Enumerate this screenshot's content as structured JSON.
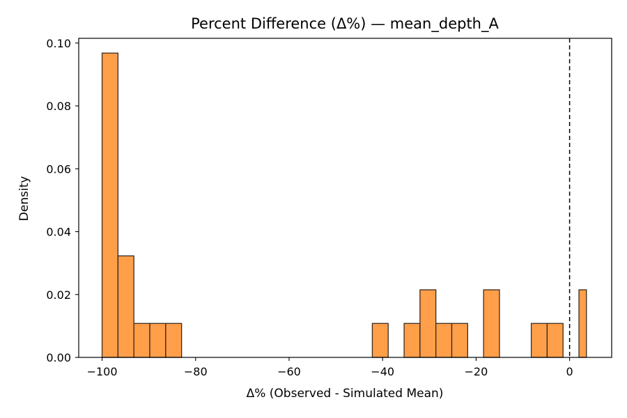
{
  "chart_data": {
    "type": "bar",
    "title": "Percent Difference (Δ%) — mean_depth_A",
    "xlabel": "Δ% (Observed - Simulated Mean)",
    "ylabel": "Density",
    "xlim": [
      -105,
      9
    ],
    "ylim": [
      0,
      0.1015
    ],
    "xticks": [
      -100,
      -80,
      -60,
      -40,
      -20,
      0
    ],
    "xtick_labels": [
      "−100",
      "−80",
      "−60",
      "−40",
      "−20",
      "0"
    ],
    "yticks": [
      0,
      0.02,
      0.04,
      0.06,
      0.08,
      0.1
    ],
    "ytick_labels": [
      "0.00",
      "0.02",
      "0.04",
      "0.06",
      "0.08",
      "0.10"
    ],
    "grid": false,
    "bin_edges": [
      -100,
      -96.6,
      -93.2,
      -89.8,
      -86.4,
      -83.0,
      -79.6,
      -76.2,
      -72.8,
      -69.4,
      -66.0,
      -62.6,
      -59.2,
      -55.8,
      -52.4,
      -49.0,
      -45.6,
      -42.2,
      -38.8,
      -35.4,
      -32.0,
      -28.6,
      -25.2,
      -21.8,
      -18.4,
      -15.0,
      -11.6,
      -8.2,
      -4.8,
      -1.4,
      2.0,
      3.6
    ],
    "values": [
      0.0968,
      0.0323,
      0.0108,
      0.0108,
      0.0108,
      0,
      0,
      0,
      0,
      0,
      0,
      0,
      0,
      0,
      0,
      0,
      0,
      0.0108,
      0,
      0.0108,
      0.0215,
      0.0108,
      0.0108,
      0,
      0.0215,
      0,
      0,
      0.0108,
      0.0108,
      0,
      0.0215
    ],
    "bar_color": "#ff9f4a",
    "edge_color": "#3a2a1e",
    "reference_line": {
      "x": 0,
      "style": "dashed",
      "color": "#000000"
    }
  }
}
